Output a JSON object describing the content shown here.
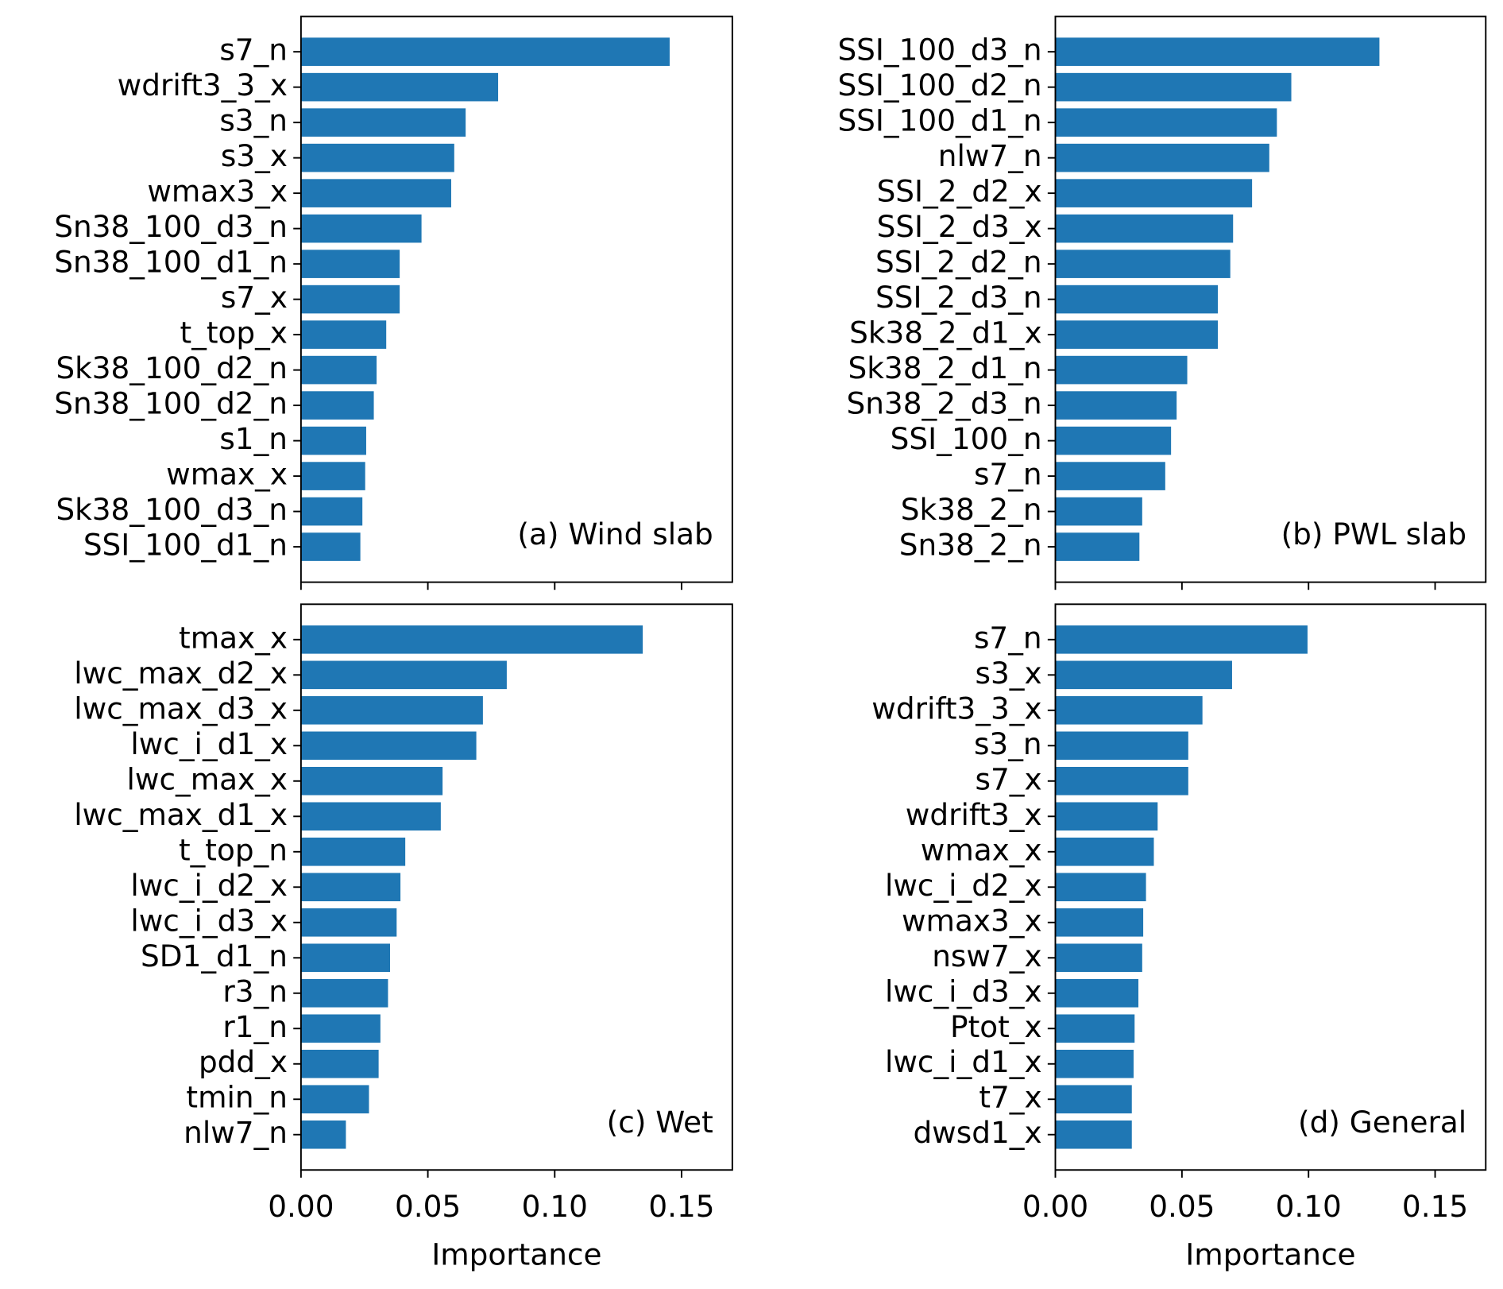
{
  "chart_data": [
    {
      "type": "barh",
      "annotation": "(a) Wind slab",
      "color": "#1f77b4",
      "xlim": [
        0,
        0.17
      ],
      "categories": [
        "s7_n",
        "wdrift3_3_x",
        "s3_n",
        "s3_x",
        "wmax3_x",
        "Sn38_100_d3_n",
        "Sn38_100_d1_n",
        "s7_x",
        "t_top_x",
        "Sk38_100_d2_n",
        "Sn38_100_d2_n",
        "s1_n",
        "wmax_x",
        "Sk38_100_d3_n",
        "SSI_100_d1_n"
      ],
      "values": [
        0.1453,
        0.0777,
        0.0649,
        0.0604,
        0.0592,
        0.0475,
        0.0389,
        0.0389,
        0.0336,
        0.0298,
        0.0287,
        0.0257,
        0.0253,
        0.0242,
        0.0234
      ]
    },
    {
      "type": "barh",
      "annotation": "(b) PWL slab",
      "color": "#1f77b4",
      "xlim": [
        0,
        0.17
      ],
      "categories": [
        "SSI_100_d3_n",
        "SSI_100_d2_n",
        "SSI_100_d1_n",
        "nlw7_n",
        "SSI_2_d2_x",
        "SSI_2_d3_x",
        "SSI_2_d2_n",
        "SSI_2_d3_n",
        "Sk38_2_d1_x",
        "Sk38_2_d1_n",
        "Sn38_2_d3_n",
        "SSI_100_n",
        "s7_n",
        "Sk38_2_n",
        "Sn38_2_n"
      ],
      "values": [
        0.128,
        0.0932,
        0.0875,
        0.0845,
        0.0777,
        0.0702,
        0.0691,
        0.0642,
        0.0642,
        0.0521,
        0.0479,
        0.0457,
        0.0434,
        0.0343,
        0.0332
      ]
    },
    {
      "type": "barh",
      "annotation": "(c) Wet",
      "color": "#1f77b4",
      "xlim": [
        0,
        0.17
      ],
      "xlabel": "Importance",
      "xticks": [
        {
          "value": 0,
          "label": "0.00"
        },
        {
          "value": 0.05,
          "label": "0.05"
        },
        {
          "value": 0.1,
          "label": "0.10"
        },
        {
          "value": 0.15,
          "label": "0.15"
        }
      ],
      "categories": [
        "tmax_x",
        "lwc_max_d2_x",
        "lwc_max_d3_x",
        "lwc_i_d1_x",
        "lwc_max_x",
        "lwc_max_d1_x",
        "t_top_n",
        "lwc_i_d2_x",
        "lwc_i_d3_x",
        "SD1_d1_n",
        "r3_n",
        "r1_n",
        "pdd_x",
        "tmin_n",
        "nlw7_n"
      ],
      "values": [
        0.1347,
        0.0811,
        0.0717,
        0.0691,
        0.0558,
        0.0551,
        0.0411,
        0.0392,
        0.0377,
        0.0351,
        0.0343,
        0.0313,
        0.0306,
        0.0268,
        0.0177
      ]
    },
    {
      "type": "barh",
      "annotation": "(d) General",
      "color": "#1f77b4",
      "xlim": [
        0,
        0.17
      ],
      "xlabel": "Importance",
      "xticks": [
        {
          "value": 0,
          "label": "0.00"
        },
        {
          "value": 0.05,
          "label": "0.05"
        },
        {
          "value": 0.1,
          "label": "0.10"
        },
        {
          "value": 0.15,
          "label": "0.15"
        }
      ],
      "categories": [
        "s7_n",
        "s3_x",
        "wdrift3_3_x",
        "s3_n",
        "s7_x",
        "wdrift3_x",
        "wmax_x",
        "lwc_i_d2_x",
        "wmax3_x",
        "nsw7_x",
        "lwc_i_d3_x",
        "Ptot_x",
        "lwc_i_d1_x",
        "t7_x",
        "dwsd1_x"
      ],
      "values": [
        0.0996,
        0.0698,
        0.0581,
        0.0525,
        0.0525,
        0.0404,
        0.0389,
        0.0358,
        0.0347,
        0.0343,
        0.0328,
        0.0313,
        0.0309,
        0.0302,
        0.0302
      ]
    }
  ]
}
